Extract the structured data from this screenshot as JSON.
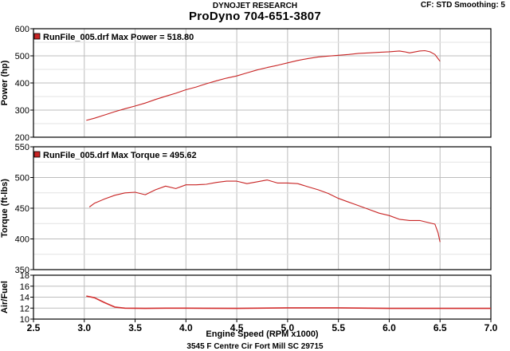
{
  "header": {
    "company": "DYNOJET RESEARCH",
    "title": "ProDyno 704-651-3807",
    "settings": "CF: STD  Smoothing: 5"
  },
  "footer": {
    "address": "3545 F Centre Cir Fort Mill SC 29715"
  },
  "colors": {
    "series": "#c82424",
    "grid": "#bdbdbd",
    "axis": "#000000",
    "afr": "#d33030"
  },
  "chart_data": [
    {
      "type": "line",
      "ylabel": "Power (hp)",
      "ylim": [
        200,
        600
      ],
      "yticks": [
        200,
        300,
        400,
        500,
        600
      ],
      "xlim": [
        2.5,
        7.0
      ],
      "grid": true,
      "legend": {
        "text": "RunFile_005.drf Max Power = 518.80",
        "placement": "top-left"
      },
      "series": [
        {
          "x": [
            3.02,
            3.1,
            3.2,
            3.3,
            3.4,
            3.5,
            3.6,
            3.7,
            3.8,
            3.9,
            4.0,
            4.1,
            4.2,
            4.3,
            4.4,
            4.5,
            4.6,
            4.7,
            4.8,
            4.9,
            5.0,
            5.1,
            5.2,
            5.3,
            5.4,
            5.5,
            5.6,
            5.7,
            5.8,
            5.9,
            6.0,
            6.1,
            6.15,
            6.2,
            6.3,
            6.35,
            6.4,
            6.45,
            6.5
          ],
          "y": [
            262,
            270,
            282,
            294,
            305,
            315,
            326,
            339,
            351,
            362,
            375,
            385,
            397,
            408,
            418,
            426,
            437,
            448,
            457,
            465,
            474,
            483,
            490,
            496,
            499,
            502,
            505,
            509,
            511,
            513,
            515,
            518,
            515,
            511,
            518,
            519,
            515,
            505,
            480
          ]
        }
      ]
    },
    {
      "type": "line",
      "ylabel": "Torque (ft-lbs)",
      "ylim": [
        350,
        550
      ],
      "yticks": [
        350,
        400,
        450,
        500,
        550
      ],
      "xlim": [
        2.5,
        7.0
      ],
      "grid": true,
      "legend": {
        "text": "RunFile_005.drf Max Torque = 495.62",
        "placement": "top-left"
      },
      "series": [
        {
          "x": [
            3.05,
            3.1,
            3.2,
            3.3,
            3.4,
            3.5,
            3.6,
            3.7,
            3.8,
            3.9,
            4.0,
            4.1,
            4.2,
            4.3,
            4.4,
            4.5,
            4.6,
            4.7,
            4.8,
            4.9,
            5.0,
            5.1,
            5.2,
            5.3,
            5.4,
            5.5,
            5.6,
            5.7,
            5.8,
            5.9,
            6.0,
            6.1,
            6.2,
            6.3,
            6.4,
            6.45,
            6.48,
            6.5
          ],
          "y": [
            452,
            458,
            465,
            471,
            475,
            476,
            472,
            480,
            486,
            482,
            488,
            488,
            489,
            492,
            494,
            494,
            490,
            493,
            496,
            491,
            491,
            490,
            485,
            480,
            474,
            466,
            460,
            454,
            448,
            442,
            438,
            432,
            430,
            430,
            426,
            424,
            410,
            395
          ]
        }
      ]
    },
    {
      "type": "line",
      "ylabel": "Air/Fuel",
      "ylim": [
        10,
        18
      ],
      "yticks": [
        10,
        12,
        14,
        16,
        18
      ],
      "xlim": [
        2.5,
        7.0
      ],
      "xticks": [
        2.5,
        3.0,
        3.5,
        4.0,
        4.5,
        5.0,
        5.5,
        6.0,
        6.5,
        7.0
      ],
      "xlabel": "Engine Speed (RPM x1000)",
      "grid": true,
      "series": [
        {
          "x": [
            3.02,
            3.1,
            3.2,
            3.3,
            3.4,
            3.6,
            3.8,
            4.0,
            4.5,
            5.0,
            5.5,
            6.0,
            6.5,
            7.0
          ],
          "y": [
            14.2,
            13.9,
            13.0,
            12.2,
            12.0,
            11.95,
            12.0,
            12.0,
            11.95,
            12.05,
            12.05,
            11.95,
            11.95,
            11.95
          ]
        }
      ]
    }
  ]
}
